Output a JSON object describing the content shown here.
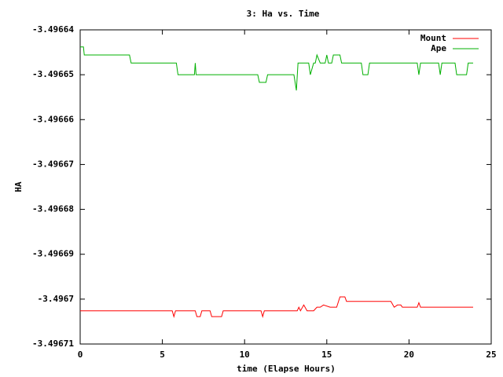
{
  "chart_data": {
    "type": "line",
    "title": "3: Ha vs. Time",
    "x_label": "time (Elapse Hours)",
    "y_label": "HA",
    "xlim": [
      0,
      25
    ],
    "xticks": [
      0,
      5,
      10,
      15,
      20,
      25
    ],
    "ylim": [
      -3.49671,
      -3.49664
    ],
    "yticks": [
      -3.49671,
      -3.4967,
      -3.49669,
      -3.49668,
      -3.49667,
      -3.49666,
      -3.49665,
      -3.49664
    ],
    "legend": "upper right",
    "series": [
      {
        "name": "Mount",
        "color": "#ff0000",
        "x": [
          0,
          5.6,
          5.7,
          5.8,
          7.0,
          7.1,
          7.3,
          7.4,
          7.9,
          8.0,
          8.6,
          8.7,
          11.0,
          11.1,
          11.2,
          13.2,
          13.3,
          13.4,
          13.6,
          13.8,
          14.2,
          14.4,
          14.6,
          14.8,
          15.2,
          15.6,
          15.8,
          16.1,
          16.2,
          18.9,
          19.1,
          19.3,
          19.5,
          19.6,
          20.5,
          20.6,
          20.7,
          23.9
        ],
        "values": [
          -3.4967026,
          -3.4967026,
          -3.4967039,
          -3.4967026,
          -3.4967026,
          -3.4967039,
          -3.4967039,
          -3.4967026,
          -3.4967026,
          -3.4967039,
          -3.4967039,
          -3.4967026,
          -3.4967026,
          -3.4967039,
          -3.4967026,
          -3.4967026,
          -3.4967018,
          -3.4967026,
          -3.4967013,
          -3.4967026,
          -3.4967026,
          -3.4967018,
          -3.4967018,
          -3.4967013,
          -3.4967018,
          -3.4967018,
          -3.4966995,
          -3.4966995,
          -3.4967005,
          -3.4967005,
          -3.4967018,
          -3.4967013,
          -3.4967013,
          -3.4967018,
          -3.4967018,
          -3.4967008,
          -3.4967018,
          -3.4967018
        ]
      },
      {
        "name": "Ape",
        "color": "#00b000",
        "x": [
          0,
          0.2,
          0.25,
          3.0,
          3.1,
          5.85,
          5.95,
          6.95,
          7.0,
          7.05,
          10.8,
          10.9,
          11.3,
          11.4,
          13.0,
          13.15,
          13.25,
          13.9,
          14.0,
          14.2,
          14.3,
          14.4,
          14.6,
          14.9,
          15.0,
          15.1,
          15.3,
          15.4,
          15.8,
          15.9,
          17.1,
          17.2,
          17.5,
          17.6,
          20.5,
          20.6,
          20.7,
          21.8,
          21.9,
          22.0,
          22.8,
          22.9,
          23.5,
          23.6,
          23.9
        ],
        "values": [
          -3.4966438,
          -3.4966438,
          -3.4966456,
          -3.4966456,
          -3.4966474,
          -3.4966474,
          -3.49665,
          -3.49665,
          -3.4966474,
          -3.49665,
          -3.49665,
          -3.4966517,
          -3.4966517,
          -3.49665,
          -3.49665,
          -3.4966535,
          -3.4966474,
          -3.4966474,
          -3.49665,
          -3.4966474,
          -3.4966474,
          -3.4966456,
          -3.4966474,
          -3.4966474,
          -3.4966456,
          -3.4966474,
          -3.4966474,
          -3.4966456,
          -3.4966456,
          -3.4966474,
          -3.4966474,
          -3.49665,
          -3.49665,
          -3.4966474,
          -3.4966474,
          -3.49665,
          -3.4966474,
          -3.4966474,
          -3.49665,
          -3.4966474,
          -3.4966474,
          -3.49665,
          -3.49665,
          -3.4966474,
          -3.4966474
        ]
      }
    ]
  }
}
